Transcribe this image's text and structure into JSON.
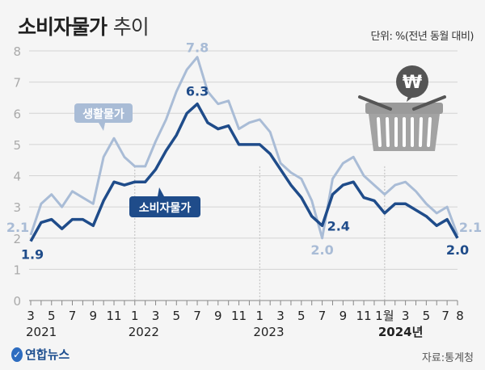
{
  "header": {
    "title_main": "소비자물가",
    "title_sub": "추이",
    "unit": "단위: %(전년 동월 대비)"
  },
  "footer": {
    "logo": "연합뉴스",
    "source": "자료:통계청"
  },
  "chart_data": {
    "type": "line",
    "title": "소비자물가 추이",
    "ylabel": "",
    "ylim": [
      0,
      8
    ],
    "yticks": [
      "0",
      "1",
      "2",
      "3",
      "4",
      "5",
      "6",
      "7",
      "8"
    ],
    "grid": true,
    "x_tick_labels": [
      "3",
      "5",
      "7",
      "9",
      "11",
      "1",
      "3",
      "5",
      "7",
      "9",
      "11",
      "1",
      "3",
      "5",
      "7",
      "9",
      "11",
      "1월",
      "3",
      "5",
      "7",
      "8"
    ],
    "x_year_labels": [
      "2021",
      "2022",
      "2023",
      "2024년"
    ],
    "x": [
      "2021-03",
      "2021-04",
      "2021-05",
      "2021-06",
      "2021-07",
      "2021-08",
      "2021-09",
      "2021-10",
      "2021-11",
      "2021-12",
      "2022-01",
      "2022-02",
      "2022-03",
      "2022-04",
      "2022-05",
      "2022-06",
      "2022-07",
      "2022-08",
      "2022-09",
      "2022-10",
      "2022-11",
      "2022-12",
      "2023-01",
      "2023-02",
      "2023-03",
      "2023-04",
      "2023-05",
      "2023-06",
      "2023-07",
      "2023-08",
      "2023-09",
      "2023-10",
      "2023-11",
      "2023-12",
      "2024-01",
      "2024-02",
      "2024-03",
      "2024-04",
      "2024-05",
      "2024-06",
      "2024-07",
      "2024-08"
    ],
    "series": [
      {
        "name": "생활물가",
        "color": "#a9bcd6",
        "values": [
          2.1,
          3.1,
          3.4,
          3.0,
          3.5,
          3.3,
          3.1,
          4.6,
          5.2,
          4.6,
          4.3,
          4.3,
          5.1,
          5.8,
          6.7,
          7.4,
          7.8,
          6.7,
          6.3,
          6.4,
          5.5,
          5.7,
          5.8,
          5.4,
          4.4,
          4.1,
          3.9,
          3.2,
          2.0,
          3.9,
          4.4,
          4.6,
          4.0,
          3.7,
          3.4,
          3.7,
          3.8,
          3.5,
          3.1,
          2.8,
          3.0,
          2.1
        ]
      },
      {
        "name": "소비자물가",
        "color": "#1f4c8a",
        "values": [
          1.9,
          2.5,
          2.6,
          2.3,
          2.6,
          2.6,
          2.4,
          3.2,
          3.8,
          3.7,
          3.8,
          3.8,
          4.2,
          4.8,
          5.3,
          6.0,
          6.3,
          5.7,
          5.5,
          5.6,
          5.0,
          5.0,
          5.0,
          4.7,
          4.2,
          3.7,
          3.3,
          2.7,
          2.4,
          3.4,
          3.7,
          3.8,
          3.3,
          3.2,
          2.8,
          3.1,
          3.1,
          2.9,
          2.7,
          2.4,
          2.6,
          2.0
        ]
      }
    ],
    "annotations": [
      {
        "series": "생활물가",
        "x": "2021-03",
        "text": "2.1"
      },
      {
        "series": "소비자물가",
        "x": "2021-03",
        "text": "1.9"
      },
      {
        "series": "생활물가",
        "x": "2022-07",
        "text": "7.8"
      },
      {
        "series": "소비자물가",
        "x": "2022-07",
        "text": "6.3"
      },
      {
        "series": "생활물가",
        "x": "2023-07",
        "text": "2.0"
      },
      {
        "series": "소비자물가",
        "x": "2023-07",
        "text": "2.4"
      },
      {
        "series": "생활물가",
        "x": "2024-08",
        "text": "2.1"
      },
      {
        "series": "소비자물가",
        "x": "2024-08",
        "text": "2.0"
      }
    ],
    "legend": "inline-callouts",
    "icon": "shopping-basket-won-icon"
  }
}
